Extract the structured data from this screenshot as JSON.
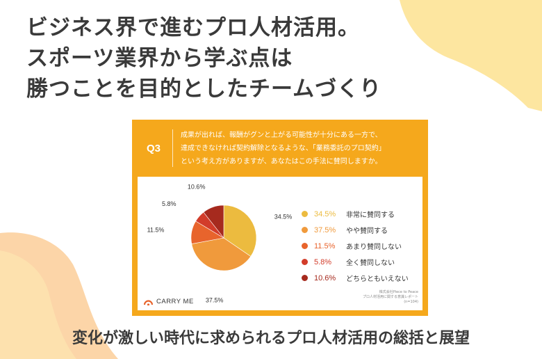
{
  "headline": {
    "lines": [
      "ビジネス界で進むプロ人材活用。",
      "スポーツ業界から学ぶ点は",
      "勝つことを目的としたチームづくり"
    ]
  },
  "card": {
    "badge": "Q3",
    "question_lines": [
      "成果が出れば、報酬がグンと上がる可能性が十分にある一方で、",
      "達成できなければ契約解除となるような、「業務委託のプロ契約」",
      "という考え方がありますが、あなたはこの手法に賛同しますか。"
    ]
  },
  "chart_data": {
    "type": "pie",
    "slices": [
      {
        "label": "非常に賛同する",
        "value": 34.5,
        "value_label": "34.5%",
        "color": "#ecbb3f"
      },
      {
        "label": "やや賛同する",
        "value": 37.5,
        "value_label": "37.5%",
        "color": "#f09a3c"
      },
      {
        "label": "あまり賛同しない",
        "value": 11.5,
        "value_label": "11.5%",
        "color": "#e8642c"
      },
      {
        "label": "全く賛同しない",
        "value": 5.8,
        "value_label": "5.8%",
        "color": "#d23c2a"
      },
      {
        "label": "どちらともいえない",
        "value": 10.6,
        "value_label": "10.6%",
        "color": "#a62a1e"
      }
    ],
    "start": "12 o'clock",
    "direction": "clockwise",
    "legend_position": "right"
  },
  "brand": {
    "name": "CARRY ME"
  },
  "source": {
    "lines": [
      "株式会社Piece to Peace",
      "プロ人材活用に関する意識レポート",
      "(n=104)"
    ]
  },
  "bottom_title": "変化が激しい時代に求められるプロ人材活用の総括と展望",
  "colors": {
    "card_orange": "#f5a81c",
    "blob_yellow": "#fde7a3",
    "blob_peach": "#fcd3a5",
    "text_dark": "#3a3a3a"
  }
}
